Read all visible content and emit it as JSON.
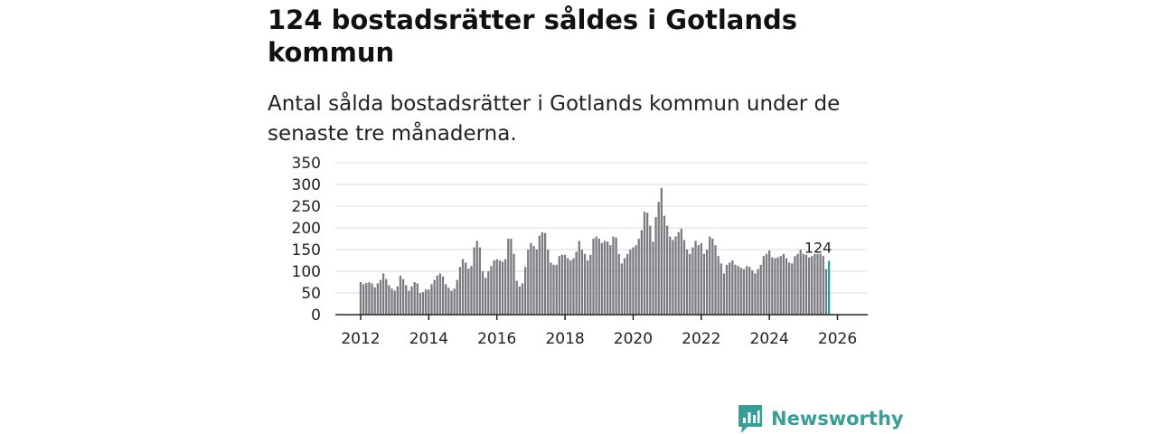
{
  "title": "124 bostadsrätter såldes i Gotlands kommun",
  "subtitle": "Antal sålda bostadsrätter i Gotlands kommun under de senaste tre månaderna.",
  "brand": {
    "name": "Newsworthy"
  },
  "colors": {
    "bar": "#7b7a80",
    "highlight": "#2a9d95",
    "grid": "#d9d9d9",
    "axis": "#222222",
    "brand": "#3a9e98"
  },
  "chart_data": {
    "type": "bar",
    "title": "124 bostadsrätter såldes i Gotlands kommun",
    "xlabel": "",
    "ylabel": "",
    "ylim": [
      0,
      350
    ],
    "yticks": [
      0,
      50,
      100,
      150,
      200,
      250,
      300,
      350
    ],
    "xticks": [
      "2012",
      "2014",
      "2016",
      "2018",
      "2020",
      "2022",
      "2024",
      "2026"
    ],
    "start": "2012-01",
    "highlight_label": "124",
    "values": [
      75,
      70,
      73,
      75,
      72,
      63,
      72,
      80,
      95,
      82,
      68,
      60,
      55,
      65,
      90,
      82,
      68,
      55,
      65,
      75,
      72,
      50,
      52,
      58,
      58,
      70,
      80,
      90,
      95,
      88,
      70,
      62,
      55,
      60,
      80,
      110,
      128,
      120,
      106,
      112,
      155,
      170,
      155,
      100,
      85,
      100,
      112,
      125,
      128,
      125,
      122,
      128,
      175,
      175,
      140,
      78,
      65,
      72,
      110,
      150,
      165,
      158,
      150,
      182,
      190,
      188,
      150,
      120,
      115,
      115,
      135,
      138,
      138,
      130,
      125,
      130,
      145,
      170,
      150,
      140,
      125,
      138,
      175,
      180,
      175,
      165,
      170,
      168,
      160,
      180,
      178,
      140,
      118,
      130,
      140,
      150,
      155,
      160,
      175,
      195,
      237,
      235,
      205,
      168,
      225,
      260,
      292,
      228,
      205,
      180,
      172,
      180,
      190,
      198,
      172,
      150,
      140,
      155,
      170,
      160,
      165,
      140,
      150,
      180,
      175,
      160,
      135,
      118,
      95,
      115,
      120,
      125,
      115,
      112,
      108,
      105,
      112,
      110,
      102,
      95,
      105,
      115,
      135,
      140,
      148,
      132,
      130,
      132,
      135,
      140,
      130,
      120,
      118,
      135,
      140,
      150,
      140,
      138,
      132,
      135,
      140,
      140,
      140,
      135,
      105,
      124
    ]
  }
}
